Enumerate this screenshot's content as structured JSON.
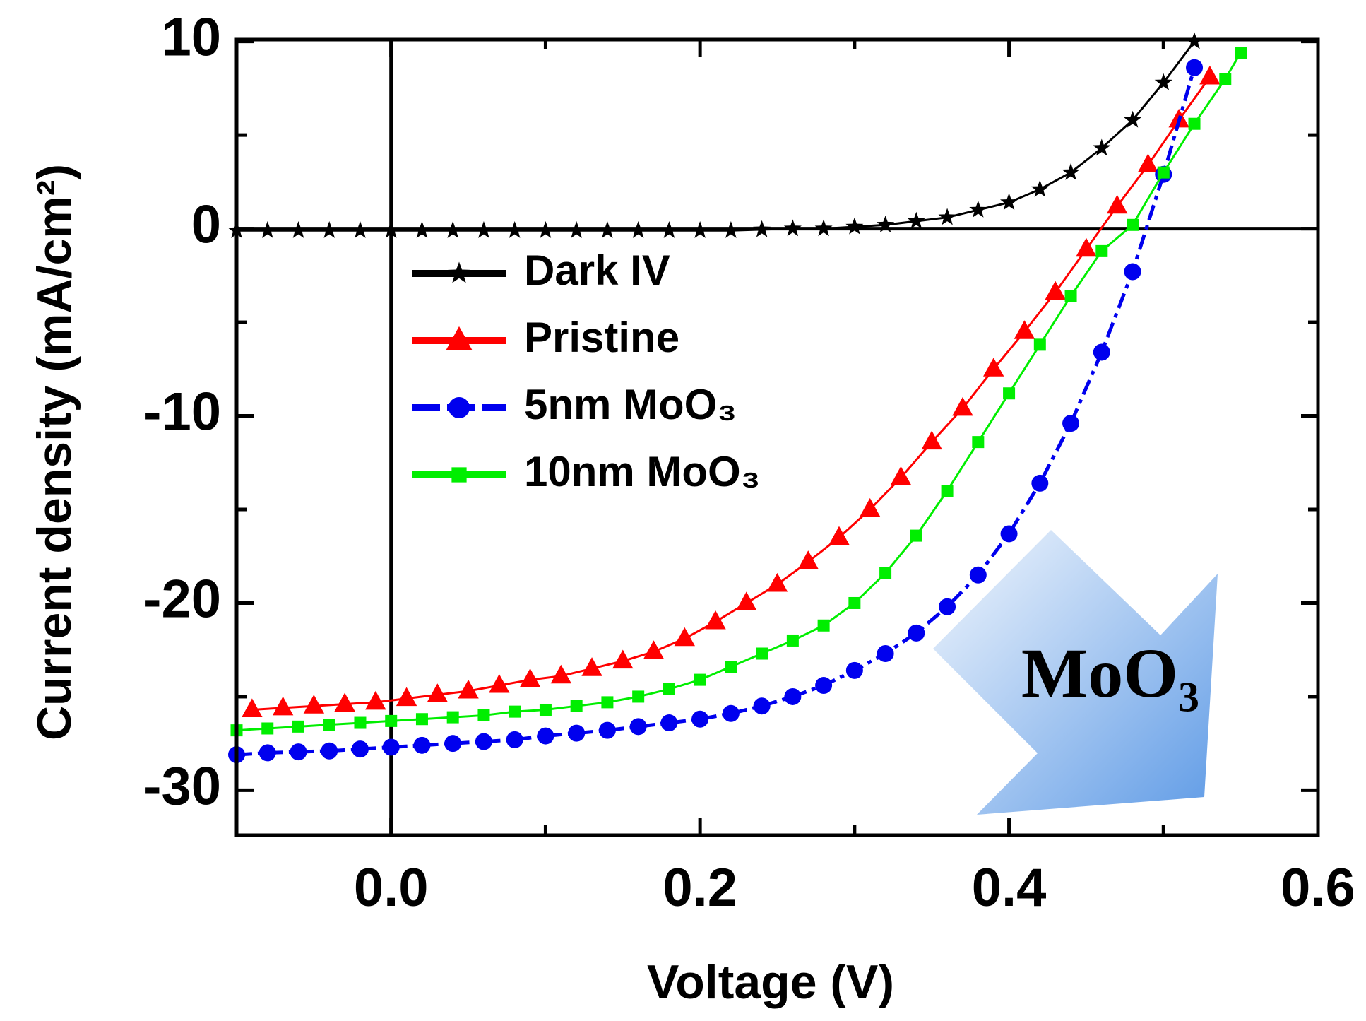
{
  "chart_data": {
    "type": "scatter",
    "xlabel": "Voltage (V)",
    "ylabel": "Current density (mA/cm²)",
    "annotation": "MoO₃",
    "xlim": [
      -0.1,
      0.6
    ],
    "ylim": [
      -32.4,
      10.1
    ],
    "xticks": [
      {
        "value": 0,
        "label": "0.0"
      },
      0.2,
      0.4,
      0.6
    ],
    "xminorticks": [
      -0.1,
      0.1,
      0.3,
      0.5
    ],
    "yticks": [
      10,
      0,
      -10,
      -20,
      -30
    ],
    "yminorticks": [
      5,
      -5,
      -15,
      -25
    ],
    "zero_lines": true,
    "legend": "upper left",
    "series": [
      {
        "name": "Dark IV",
        "color": "#000000",
        "marker": "star",
        "x": [
          -0.1,
          -0.08,
          -0.06,
          -0.04,
          -0.02,
          0,
          0.02,
          0.04,
          0.06,
          0.08,
          0.1,
          0.12,
          0.14,
          0.16,
          0.18,
          0.2,
          0.22,
          0.24,
          0.26,
          0.28,
          0.3,
          0.32,
          0.34,
          0.36,
          0.38,
          0.4,
          0.42,
          0.44,
          0.46,
          0.48,
          0.5,
          0.52
        ],
        "values": [
          -0.1,
          -0.1,
          -0.1,
          -0.1,
          -0.1,
          -0.1,
          -0.1,
          -0.1,
          -0.1,
          -0.1,
          -0.1,
          -0.1,
          -0.1,
          -0.1,
          -0.1,
          -0.1,
          -0.1,
          -0.05,
          0,
          0,
          0.1,
          0.2,
          0.4,
          0.6,
          1.0,
          1.4,
          2.1,
          3.0,
          4.3,
          5.8,
          7.8,
          10
        ]
      },
      {
        "name": "Pristine",
        "color": "#ff0000",
        "marker": "triangle",
        "x": [
          -0.09,
          -0.07,
          -0.05,
          -0.03,
          -0.01,
          0.01,
          0.03,
          0.05,
          0.07,
          0.09,
          0.11,
          0.13,
          0.15,
          0.17,
          0.19,
          0.21,
          0.23,
          0.25,
          0.27,
          0.29,
          0.31,
          0.33,
          0.35,
          0.37,
          0.39,
          0.41,
          0.43,
          0.45,
          0.47,
          0.49,
          0.51,
          0.53
        ],
        "values": [
          -25.7,
          -25.6,
          -25.5,
          -25.4,
          -25.3,
          -25.1,
          -24.9,
          -24.7,
          -24.4,
          -24.1,
          -23.9,
          -23.5,
          -23.1,
          -22.6,
          -21.9,
          -21.0,
          -20.0,
          -19.0,
          -17.8,
          -16.5,
          -15.0,
          -13.3,
          -11.4,
          -9.6,
          -7.5,
          -5.5,
          -3.4,
          -1.1,
          1.2,
          3.4,
          5.8,
          8.1
        ]
      },
      {
        "name": "5nm MoO₃",
        "color": "#0000ee",
        "marker": "circle",
        "dash": true,
        "x": [
          -0.1,
          -0.08,
          -0.06,
          -0.04,
          -0.02,
          0,
          0.02,
          0.04,
          0.06,
          0.08,
          0.1,
          0.12,
          0.14,
          0.16,
          0.18,
          0.2,
          0.22,
          0.24,
          0.26,
          0.28,
          0.3,
          0.32,
          0.34,
          0.36,
          0.38,
          0.4,
          0.42,
          0.44,
          0.46,
          0.48,
          0.5,
          0.52
        ],
        "values": [
          -28.1,
          -28.0,
          -27.95,
          -27.9,
          -27.8,
          -27.7,
          -27.6,
          -27.5,
          -27.4,
          -27.3,
          -27.1,
          -26.95,
          -26.8,
          -26.6,
          -26.4,
          -26.2,
          -25.9,
          -25.5,
          -25.0,
          -24.4,
          -23.6,
          -22.7,
          -21.6,
          -20.2,
          -18.5,
          -16.3,
          -13.6,
          -10.4,
          -6.6,
          -2.3,
          2.9,
          8.6
        ]
      },
      {
        "name": "10nm MoO₃",
        "color": "#00ee00",
        "marker": "square",
        "x": [
          -0.1,
          -0.08,
          -0.06,
          -0.04,
          -0.02,
          0,
          0.02,
          0.04,
          0.06,
          0.08,
          0.1,
          0.12,
          0.14,
          0.16,
          0.18,
          0.2,
          0.22,
          0.24,
          0.26,
          0.28,
          0.3,
          0.32,
          0.34,
          0.36,
          0.38,
          0.4,
          0.42,
          0.44,
          0.46,
          0.48,
          0.5,
          0.52,
          0.54,
          0.55
        ],
        "values": [
          -26.8,
          -26.7,
          -26.6,
          -26.5,
          -26.4,
          -26.3,
          -26.2,
          -26.1,
          -26.0,
          -25.8,
          -25.7,
          -25.5,
          -25.3,
          -25.0,
          -24.6,
          -24.1,
          -23.4,
          -22.7,
          -22.0,
          -21.2,
          -20.0,
          -18.4,
          -16.4,
          -14.0,
          -11.4,
          -8.8,
          -6.2,
          -3.6,
          -1.2,
          0.2,
          3.0,
          5.6,
          8.0,
          9.4
        ]
      }
    ]
  }
}
